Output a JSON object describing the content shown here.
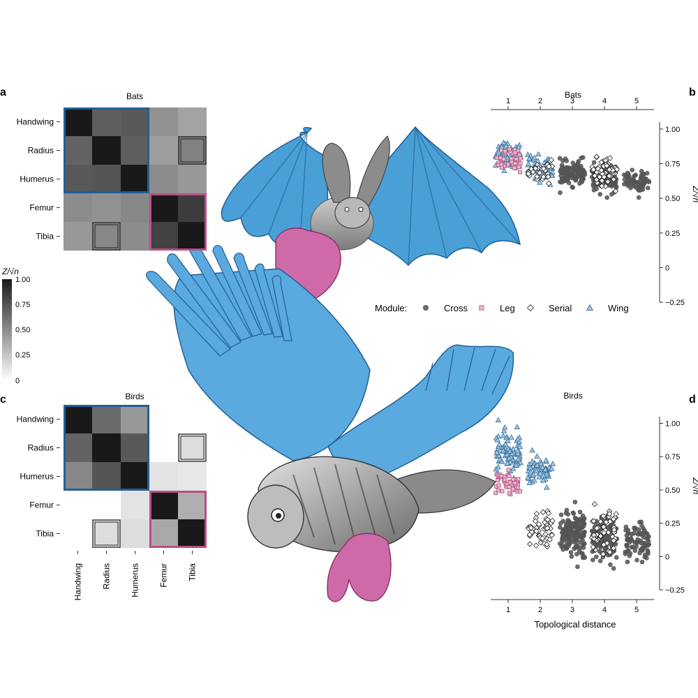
{
  "panels": {
    "a": {
      "letter": "a",
      "title": "Bats"
    },
    "b": {
      "letter": "b",
      "title": "Bats"
    },
    "c": {
      "letter": "c",
      "title": "Birds"
    },
    "d": {
      "letter": "d",
      "title": "Birds"
    }
  },
  "colorbar": {
    "label": "Z/√n",
    "ticks": [
      "1.00",
      "0.75",
      "0.50",
      "0.25",
      "0"
    ]
  },
  "legend": {
    "title": "Module:",
    "entries": [
      {
        "name": "Cross",
        "shape": "circle",
        "fill": "#555555",
        "stroke": "#555555"
      },
      {
        "name": "Leg",
        "shape": "square",
        "fill": "#e8b9cc",
        "stroke": "#b04f7c"
      },
      {
        "name": "Serial",
        "shape": "diamond",
        "fill": "#ffffff",
        "stroke": "#222222"
      },
      {
        "name": "Wing",
        "shape": "triangle",
        "fill": "#9ec6e6",
        "stroke": "#3a6f9a"
      }
    ]
  },
  "colors": {
    "wing_module": "#1f5f96",
    "leg_module": "#b84e85",
    "bat_wing": "#4a9fd6",
    "bird_wing": "#5aa9df",
    "leg_pink": "#cf6aa8"
  },
  "illustrations": {
    "bat": "bat-illustration",
    "owl": "owl-illustration"
  },
  "chart_data": [
    {
      "type": "heatmap",
      "panel": "a",
      "title": "Bats",
      "rows": [
        "Handwing",
        "Radius",
        "Humerus",
        "Femur",
        "Tibia"
      ],
      "cols": [
        "Handwing",
        "Radius",
        "Humerus",
        "Femur",
        "Tibia"
      ],
      "values": [
        [
          1.0,
          0.7,
          0.72,
          0.48,
          0.4
        ],
        [
          0.68,
          1.0,
          0.7,
          0.42,
          0.55
        ],
        [
          0.72,
          0.74,
          1.0,
          0.5,
          0.45
        ],
        [
          0.5,
          0.48,
          0.52,
          1.0,
          0.85
        ],
        [
          0.45,
          0.52,
          0.5,
          0.82,
          1.0
        ]
      ],
      "colorbar_range": [
        0,
        1
      ],
      "modules": [
        {
          "name": "Wing",
          "rows": [
            0,
            2
          ]
        },
        {
          "name": "Leg",
          "rows": [
            3,
            4
          ]
        }
      ],
      "serial_pairs": [
        [
          1,
          4
        ],
        [
          4,
          1
        ]
      ]
    },
    {
      "type": "heatmap",
      "panel": "c",
      "title": "Birds",
      "rows": [
        "Handwing",
        "Radius",
        "Humerus",
        "Femur",
        "Tibia"
      ],
      "cols": [
        "Handwing",
        "Radius",
        "Humerus",
        "Femur",
        "Tibia"
      ],
      "values": [
        [
          1.0,
          0.65,
          0.45,
          null,
          null
        ],
        [
          0.68,
          1.0,
          0.72,
          null,
          0.15
        ],
        [
          0.52,
          0.74,
          1.0,
          0.12,
          0.1
        ],
        [
          null,
          null,
          0.12,
          1.0,
          0.35
        ],
        [
          null,
          0.15,
          0.15,
          0.38,
          1.0
        ]
      ],
      "colorbar_range": [
        0,
        1
      ],
      "modules": [
        {
          "name": "Wing",
          "rows": [
            0,
            2
          ]
        },
        {
          "name": "Leg",
          "rows": [
            3,
            4
          ]
        }
      ],
      "serial_pairs": [
        [
          1,
          4
        ],
        [
          4,
          1
        ]
      ]
    },
    {
      "type": "scatter",
      "panel": "b",
      "title": "Bats",
      "xlabel": "",
      "ylabel": "Z/√n",
      "xticks": [
        "1",
        "2",
        "3",
        "4",
        "5"
      ],
      "yticks": [
        "1.00",
        "0.75",
        "0.50",
        "0.25",
        "0",
        "−0.25"
      ],
      "ylim": [
        -0.25,
        1.05
      ],
      "groups": [
        {
          "module": "Wing",
          "x": 1,
          "mean": 0.82,
          "sd": 0.05,
          "n": 60
        },
        {
          "module": "Leg",
          "x": 1,
          "mean": 0.78,
          "sd": 0.04,
          "n": 40
        },
        {
          "module": "Wing",
          "x": 2,
          "mean": 0.71,
          "sd": 0.05,
          "n": 50
        },
        {
          "module": "Serial",
          "x": 2,
          "mean": 0.7,
          "sd": 0.04,
          "n": 30
        },
        {
          "module": "Cross",
          "x": 3,
          "mean": 0.68,
          "sd": 0.04,
          "n": 120
        },
        {
          "module": "Cross",
          "x": 4,
          "mean": 0.65,
          "sd": 0.05,
          "n": 100
        },
        {
          "module": "Serial",
          "x": 4,
          "mean": 0.68,
          "sd": 0.05,
          "n": 60
        },
        {
          "module": "Cross",
          "x": 5,
          "mean": 0.62,
          "sd": 0.04,
          "n": 70
        }
      ]
    },
    {
      "type": "scatter",
      "panel": "d",
      "title": "Birds",
      "xlabel": "Topological distance",
      "ylabel": "Z/√n",
      "xticks": [
        "1",
        "2",
        "3",
        "4",
        "5"
      ],
      "yticks": [
        "1.00",
        "0.75",
        "0.50",
        "0.25",
        "0",
        "−0.25"
      ],
      "ylim": [
        -0.25,
        1.05
      ],
      "groups": [
        {
          "module": "Wing",
          "x": 1,
          "mean": 0.78,
          "sd": 0.08,
          "n": 90
        },
        {
          "module": "Leg",
          "x": 1,
          "mean": 0.55,
          "sd": 0.04,
          "n": 50
        },
        {
          "module": "Wing",
          "x": 2,
          "mean": 0.64,
          "sd": 0.05,
          "n": 60
        },
        {
          "module": "Serial",
          "x": 2,
          "mean": 0.2,
          "sd": 0.06,
          "n": 50
        },
        {
          "module": "Cross",
          "x": 3,
          "mean": 0.18,
          "sd": 0.09,
          "n": 160
        },
        {
          "module": "Cross",
          "x": 4,
          "mean": 0.12,
          "sd": 0.08,
          "n": 130
        },
        {
          "module": "Serial",
          "x": 4,
          "mean": 0.18,
          "sd": 0.1,
          "n": 50
        },
        {
          "module": "Cross",
          "x": 5,
          "mean": 0.1,
          "sd": 0.07,
          "n": 80
        }
      ]
    }
  ]
}
